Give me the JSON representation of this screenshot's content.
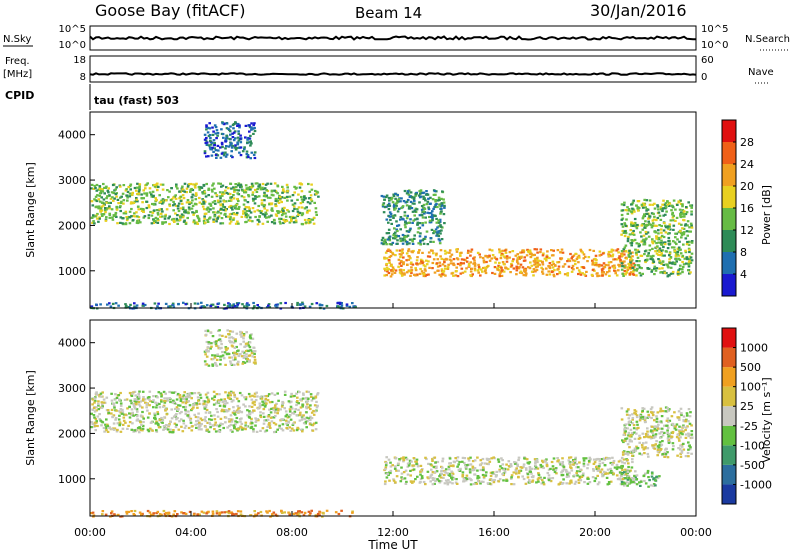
{
  "header": {
    "station": "Goose Bay (fitACF)",
    "beam": "Beam 14",
    "date": "30/Jan/2016"
  },
  "left_labels": {
    "nsky": "N.Sky",
    "freq_line1": "Freq.",
    "freq_line2": "[MHz]",
    "cpid": "CPID"
  },
  "right_labels": {
    "nsearch": "N.Search",
    "nave": "Nave"
  },
  "cpid_text": "tau (fast) 503",
  "strip_ticks": {
    "nsky_left": [
      "10^5",
      "10^0"
    ],
    "nsky_right": [
      "10^5",
      "10^0"
    ],
    "freq_left": [
      "18",
      "8"
    ],
    "freq_right": [
      "60",
      "0"
    ]
  },
  "chart_data": [
    {
      "type": "heatmap",
      "quantity": "Power",
      "ylabel": "Slant Range [km]",
      "ylim": [
        180,
        4500
      ],
      "yticks": [
        "4000",
        "3000",
        "2000",
        "1000"
      ],
      "colorbar_label": "Power [dB]",
      "colorbar_ticks": [
        "28",
        "24",
        "20",
        "16",
        "12",
        "8",
        "4"
      ],
      "colors": [
        "#1a1ad0",
        "#1f6fb0",
        "#2e8b57",
        "#66bb44",
        "#e8d020",
        "#f0a020",
        "#f06018",
        "#e01010"
      ],
      "bands": [
        {
          "t0": 0.0,
          "t1": 9.0,
          "r0": 2050,
          "r1": 2950,
          "level": 3
        },
        {
          "t0": 11.6,
          "t1": 21.5,
          "r0": 900,
          "r1": 1500,
          "level": 5
        },
        {
          "t0": 21.0,
          "t1": 23.8,
          "r0": 900,
          "r1": 2600,
          "level": 3
        },
        {
          "t0": 4.5,
          "t1": 6.5,
          "r0": 3500,
          "r1": 4300,
          "level": 1
        },
        {
          "t0": 0.0,
          "t1": 10.5,
          "r0": 190,
          "r1": 320,
          "level": 1
        },
        {
          "t0": 11.5,
          "t1": 14.0,
          "r0": 1600,
          "r1": 2800,
          "level": 2
        }
      ]
    },
    {
      "type": "heatmap",
      "quantity": "Velocity",
      "ylabel": "Slant Range [km]",
      "ylim": [
        180,
        4500
      ],
      "yticks": [
        "4000",
        "3000",
        "2000",
        "1000"
      ],
      "colorbar_label": "Velocity [m s⁻¹]",
      "colorbar_ticks": [
        "1000",
        "500",
        "100",
        "25",
        "-25",
        "-100",
        "-500",
        "-1000"
      ],
      "colors": [
        "#1a3aa0",
        "#2c6e9e",
        "#3f9a6a",
        "#62c040",
        "#c8c8c0",
        "#d8c040",
        "#f0a020",
        "#e06020",
        "#e01010"
      ],
      "bands": [
        {
          "t0": 0.0,
          "t1": 9.0,
          "r0": 2050,
          "r1": 2950,
          "level": 4
        },
        {
          "t0": 11.6,
          "t1": 21.5,
          "r0": 900,
          "r1": 1500,
          "level": 4
        },
        {
          "t0": 21.0,
          "t1": 23.8,
          "r0": 1500,
          "r1": 2600,
          "level": 4
        },
        {
          "t0": 21.0,
          "t1": 22.5,
          "r0": 850,
          "r1": 1200,
          "level": 3
        },
        {
          "t0": 4.5,
          "t1": 6.5,
          "r0": 3500,
          "r1": 4300,
          "level": 4
        },
        {
          "t0": 0.0,
          "t1": 10.5,
          "r0": 190,
          "r1": 320,
          "level": 6
        }
      ]
    }
  ],
  "x_axis": {
    "ticks": [
      "00:00",
      "04:00",
      "08:00",
      "12:00",
      "16:00",
      "20:00",
      "00:00"
    ],
    "label": "Time UT"
  }
}
